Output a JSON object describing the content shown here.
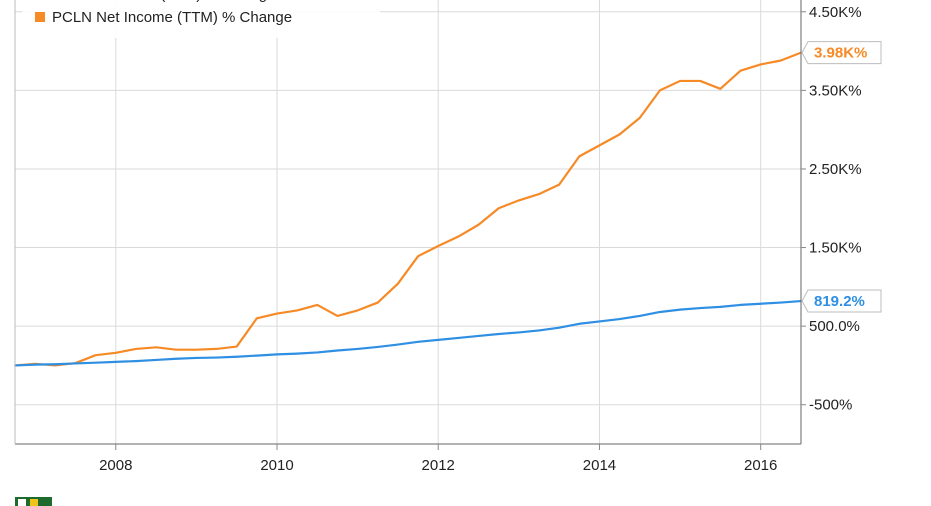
{
  "chart_data": {
    "type": "line",
    "legend": {
      "placement": "top-left",
      "items": [
        {
          "label": "PCLN Revenue (TTM) % Change",
          "color": "#2e8fe3",
          "clipped": true
        },
        {
          "label": "PCLN Net Income (TTM) % Change",
          "color": "#f68a26"
        }
      ]
    },
    "x_ticks": [
      "2008",
      "2010",
      "2012",
      "2014",
      "2016"
    ],
    "y_ticks": [
      {
        "value": 4500,
        "label": "4.50K%"
      },
      {
        "value": 3500,
        "label": "3.50K%"
      },
      {
        "value": 2500,
        "label": "2.50K%"
      },
      {
        "value": 1500,
        "label": "1.50K%"
      },
      {
        "value": 500,
        "label": "500.0%"
      },
      {
        "value": -500,
        "label": "-500%"
      }
    ],
    "xlim": [
      2006.75,
      2016.5
    ],
    "ylim": [
      -1000,
      4650
    ],
    "grid": true,
    "series": [
      {
        "name": "PCLN Net Income (TTM) % Change",
        "color": "#f68a26",
        "end_label": "3.98K%",
        "points": [
          [
            2006.75,
            0
          ],
          [
            2007.0,
            20
          ],
          [
            2007.25,
            0
          ],
          [
            2007.5,
            30
          ],
          [
            2007.75,
            130
          ],
          [
            2008.0,
            160
          ],
          [
            2008.25,
            210
          ],
          [
            2008.5,
            230
          ],
          [
            2008.75,
            200
          ],
          [
            2009.0,
            200
          ],
          [
            2009.25,
            210
          ],
          [
            2009.5,
            240
          ],
          [
            2009.75,
            600
          ],
          [
            2010.0,
            660
          ],
          [
            2010.25,
            700
          ],
          [
            2010.5,
            770
          ],
          [
            2010.75,
            630
          ],
          [
            2011.0,
            700
          ],
          [
            2011.25,
            800
          ],
          [
            2011.5,
            1040
          ],
          [
            2011.75,
            1390
          ],
          [
            2012.0,
            1520
          ],
          [
            2012.25,
            1640
          ],
          [
            2012.5,
            1790
          ],
          [
            2012.75,
            2000
          ],
          [
            2013.0,
            2100
          ],
          [
            2013.25,
            2180
          ],
          [
            2013.5,
            2300
          ],
          [
            2013.75,
            2660
          ],
          [
            2014.0,
            2800
          ],
          [
            2014.25,
            2940
          ],
          [
            2014.5,
            3150
          ],
          [
            2014.75,
            3500
          ],
          [
            2015.0,
            3620
          ],
          [
            2015.25,
            3620
          ],
          [
            2015.5,
            3520
          ],
          [
            2015.75,
            3750
          ],
          [
            2016.0,
            3830
          ],
          [
            2016.25,
            3880
          ],
          [
            2016.5,
            3980
          ]
        ]
      },
      {
        "name": "PCLN Revenue (TTM) % Change",
        "color": "#2e8fe3",
        "end_label": "819.2%",
        "points": [
          [
            2006.75,
            0
          ],
          [
            2007.0,
            10
          ],
          [
            2007.25,
            15
          ],
          [
            2007.5,
            25
          ],
          [
            2007.75,
            35
          ],
          [
            2008.0,
            45
          ],
          [
            2008.25,
            55
          ],
          [
            2008.5,
            70
          ],
          [
            2008.75,
            85
          ],
          [
            2009.0,
            95
          ],
          [
            2009.25,
            100
          ],
          [
            2009.5,
            110
          ],
          [
            2009.75,
            125
          ],
          [
            2010.0,
            140
          ],
          [
            2010.25,
            150
          ],
          [
            2010.5,
            165
          ],
          [
            2010.75,
            190
          ],
          [
            2011.0,
            210
          ],
          [
            2011.25,
            235
          ],
          [
            2011.5,
            265
          ],
          [
            2011.75,
            300
          ],
          [
            2012.0,
            325
          ],
          [
            2012.25,
            350
          ],
          [
            2012.5,
            375
          ],
          [
            2012.75,
            400
          ],
          [
            2013.0,
            420
          ],
          [
            2013.25,
            445
          ],
          [
            2013.5,
            480
          ],
          [
            2013.75,
            530
          ],
          [
            2014.0,
            560
          ],
          [
            2014.25,
            590
          ],
          [
            2014.5,
            630
          ],
          [
            2014.75,
            680
          ],
          [
            2015.0,
            710
          ],
          [
            2015.25,
            730
          ],
          [
            2015.5,
            745
          ],
          [
            2015.75,
            770
          ],
          [
            2016.0,
            785
          ],
          [
            2016.25,
            800
          ],
          [
            2016.5,
            819.2
          ]
        ]
      }
    ]
  }
}
